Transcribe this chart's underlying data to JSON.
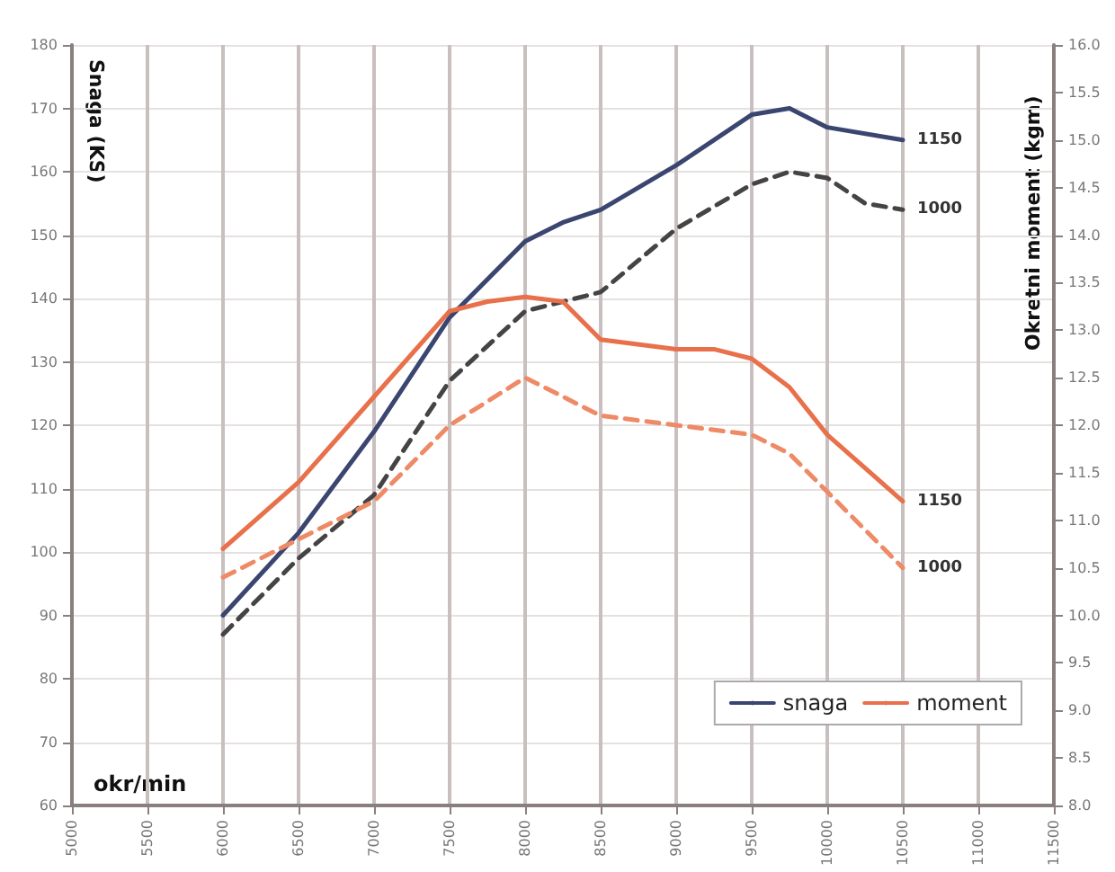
{
  "chart_data": {
    "type": "line",
    "ylabel": "Snaga (KS)",
    "y2label": "Okretni moment (kgm)",
    "xlabel": "okr/min",
    "xlim": [
      5000,
      11500
    ],
    "xticks": [
      5000,
      5500,
      6000,
      6500,
      7000,
      7500,
      8000,
      8500,
      9000,
      9500,
      10000,
      10500,
      11000,
      11500
    ],
    "ylim": [
      60,
      180
    ],
    "yticks": [
      60,
      70,
      80,
      90,
      100,
      110,
      120,
      130,
      140,
      150,
      160,
      170,
      180
    ],
    "y2lim": [
      8,
      16
    ],
    "y2ticks": [
      {
        "value": 8,
        "label": "8.0"
      },
      {
        "value": 8.5,
        "label": "8.5"
      },
      {
        "value": 9,
        "label": "9.0"
      },
      {
        "value": 9.5,
        "label": "9.5"
      },
      {
        "value": 10,
        "label": "10.0"
      },
      {
        "value": 10.5,
        "label": "10.5"
      },
      {
        "value": 11,
        "label": "11.0"
      },
      {
        "value": 11.5,
        "label": "11.5"
      },
      {
        "value": 12,
        "label": "12.0"
      },
      {
        "value": 12.5,
        "label": "12.5"
      },
      {
        "value": 13,
        "label": "13.0"
      },
      {
        "value": 13.5,
        "label": "13.5"
      },
      {
        "value": 14,
        "label": "14.0"
      },
      {
        "value": 14.5,
        "label": "14.5"
      },
      {
        "value": 15,
        "label": "15.0"
      },
      {
        "value": 15.5,
        "label": "15.5"
      },
      {
        "value": 16,
        "label": "16.0"
      }
    ],
    "grid": true,
    "legend": "bottom right",
    "marker": "none",
    "series": [
      {
        "name": "snaga",
        "color": "#3b4670",
        "line_style": "solid",
        "x": [
          6000,
          6500,
          7000,
          7500,
          8000,
          8250,
          8500,
          9000,
          9500,
          9750,
          10000,
          10500
        ],
        "values": [
          90,
          103,
          119,
          137,
          149,
          152,
          154,
          161,
          169,
          170,
          167,
          165
        ]
      },
      {
        "color": "#444444",
        "line_style": "dashed",
        "x": [
          6000,
          6500,
          7000,
          7500,
          8000,
          8500,
          9000,
          9500,
          9750,
          10000,
          10250,
          10500
        ],
        "values": [
          87,
          99,
          109,
          127,
          138,
          141,
          151,
          158,
          160,
          159,
          155,
          154
        ]
      },
      {
        "name": "moment",
        "color": "#e8704a",
        "line_style": "solid",
        "axis": "y2",
        "x": [
          6000,
          6500,
          7000,
          7500,
          7750,
          8000,
          8250,
          8500,
          9000,
          9250,
          9500,
          9750,
          10000,
          10500
        ],
        "values": [
          10.7,
          11.4,
          12.3,
          13.2,
          13.3,
          13.35,
          13.3,
          12.9,
          12.8,
          12.8,
          12.7,
          12.4,
          11.9,
          11.2
        ]
      },
      {
        "color": "#ee8a66",
        "line_style": "dashed",
        "axis": "y2",
        "x": [
          6000,
          6500,
          7000,
          7500,
          8000,
          8500,
          9000,
          9500,
          9750,
          10000,
          10500
        ],
        "values": [
          10.4,
          10.8,
          11.2,
          12.0,
          12.5,
          12.1,
          12.0,
          11.9,
          11.7,
          11.3,
          10.5
        ]
      }
    ],
    "annotations": [
      "1150",
      "1000",
      "1150",
      "1000"
    ]
  }
}
